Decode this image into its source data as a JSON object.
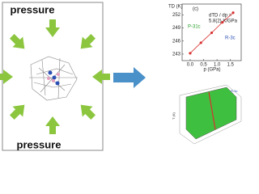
{
  "left_panel": {
    "top_label": "pressure",
    "bottom_label": "pressure"
  },
  "chart_data": {
    "type": "scatter",
    "y_label": "TD (K)",
    "x_label": "p (GPa)",
    "annotations": [
      "(c)",
      "dTD / dp =",
      "5.8(2) K/GPa",
      "P-31c",
      "R-3c"
    ],
    "series": [
      {
        "name": "TD",
        "color": "#d93030",
        "x": [
          0,
          0.4,
          0.8,
          1.2,
          1.6
        ],
        "values": [
          243.2,
          245.6,
          247.9,
          250.3,
          252.5
        ]
      }
    ],
    "xlim": [
      -0.3,
      1.9
    ],
    "xticks": [
      {
        "value": 0,
        "label": "0.0"
      },
      0.5,
      {
        "value": 1,
        "label": "1.0"
      },
      1.5
    ],
    "ylim": [
      241.5,
      254.5
    ],
    "yticks": [
      243,
      246,
      249,
      252
    ]
  }
}
